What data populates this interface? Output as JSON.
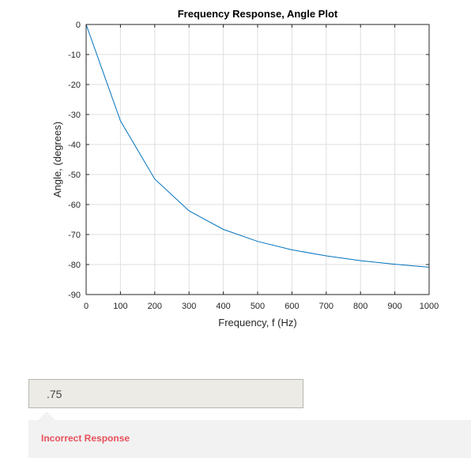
{
  "chart_data": {
    "type": "line",
    "title": "Frequency Response, Angle Plot",
    "xlabel": "Frequency, f (Hz)",
    "ylabel": "Angle, (degrees)",
    "xlim": [
      0,
      1000
    ],
    "ylim": [
      -90,
      0
    ],
    "xticks": [
      0,
      100,
      200,
      300,
      400,
      500,
      600,
      700,
      800,
      900,
      1000
    ],
    "yticks": [
      0,
      -10,
      -20,
      -30,
      -40,
      -50,
      -60,
      -70,
      -80,
      -90
    ],
    "grid": true,
    "series": [
      {
        "x": [
          0,
          100,
          200,
          300,
          400,
          500,
          600,
          700,
          800,
          900,
          1000
        ],
        "y": [
          0,
          -32.1,
          -51.5,
          -62.1,
          -68.3,
          -72.3,
          -75.1,
          -77.1,
          -78.7,
          -79.9,
          -80.9
        ],
        "color": "#0072bd"
      }
    ]
  },
  "answer": {
    "value": ".75"
  },
  "feedback": {
    "text": "Incorrect Response",
    "color": "#e8505b"
  }
}
